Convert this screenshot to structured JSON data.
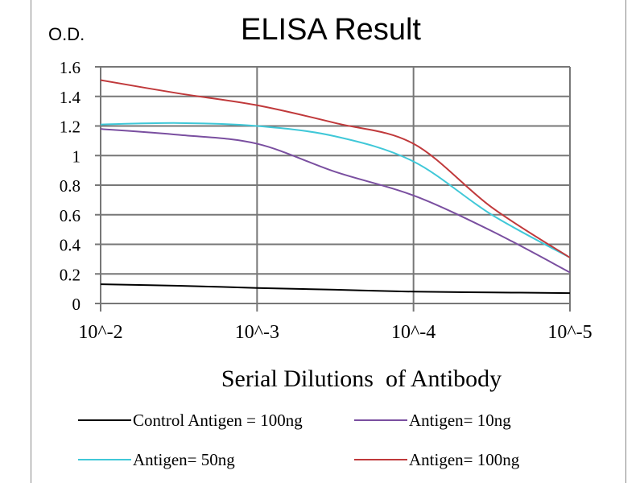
{
  "chart_data": {
    "type": "line",
    "title": "ELISA Result",
    "ylabel": "O.D.",
    "xlabel": "Serial Dilutions  of Antibody",
    "x_exponents": [
      -2,
      -2.5,
      -3,
      -3.5,
      -4,
      -4.5,
      -5
    ],
    "x_tick_labels": [
      "10^-2",
      "10^-3",
      "10^-4",
      "10^-5"
    ],
    "y_tick_labels": [
      "0",
      "0.2",
      "0.4",
      "0.6",
      "0.8",
      "1",
      "1.2",
      "1.4",
      "1.6"
    ],
    "ylim": [
      0,
      1.6
    ],
    "grid": true,
    "legend_position": "bottom",
    "series": [
      {
        "name": "Control Antigen = 100ng",
        "color": "#000000",
        "values": [
          0.13,
          0.12,
          0.105,
          0.093,
          0.08,
          0.075,
          0.07
        ]
      },
      {
        "name": "Antigen= 10ng",
        "color": "#7a4fa0",
        "values": [
          1.18,
          1.14,
          1.08,
          0.89,
          0.73,
          0.49,
          0.21
        ]
      },
      {
        "name": "Antigen= 50ng",
        "color": "#40c8d8",
        "values": [
          1.21,
          1.22,
          1.2,
          1.13,
          0.96,
          0.6,
          0.31
        ]
      },
      {
        "name": "Antigen= 100ng",
        "color": "#c0393b",
        "values": [
          1.51,
          1.42,
          1.34,
          1.22,
          1.08,
          0.65,
          0.31
        ]
      }
    ]
  }
}
